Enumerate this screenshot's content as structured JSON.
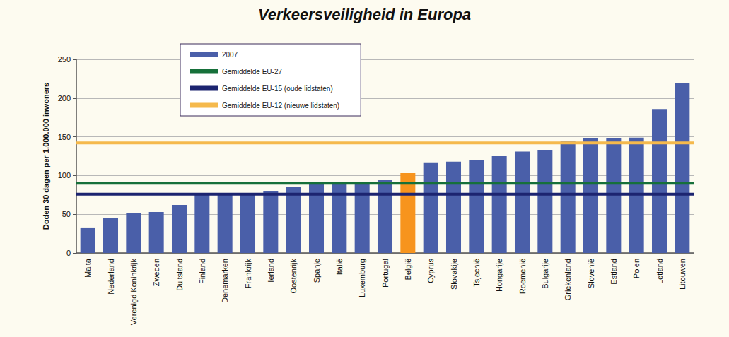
{
  "chart_data": {
    "type": "bar",
    "title": "Verkeersveiligheid in Europa",
    "y_label": "Doden 30 dagen per 1.000.000 inwoners",
    "categories": [
      "Malta",
      "Nederland",
      "Verenigd Koninkrijk",
      "Zweden",
      "Duitsland",
      "Finland",
      "Denemarken",
      "Frankrijk",
      "Ierland",
      "Oostenrijk",
      "Spanje",
      "Italië",
      "Luxemburg",
      "Portugal",
      "België",
      "Cyprus",
      "Slovakije",
      "Tsjechië",
      "Hongarije",
      "Roemenië",
      "Bulgarije",
      "Griekenland",
      "Slovenië",
      "Estland",
      "Polen",
      "Letland",
      "Litouwen"
    ],
    "series": [
      {
        "name": "2007",
        "type": "bar",
        "colors": [
          "#4a5fa9",
          "#4a5fa9",
          "#4a5fa9",
          "#4a5fa9",
          "#4a5fa9",
          "#4a5fa9",
          "#4a5fa9",
          "#4a5fa9",
          "#4a5fa9",
          "#4a5fa9",
          "#4a5fa9",
          "#4a5fa9",
          "#4a5fa9",
          "#4a5fa9",
          "#f7941d",
          "#4a5fa9",
          "#4a5fa9",
          "#4a5fa9",
          "#4a5fa9",
          "#4a5fa9",
          "#4a5fa9",
          "#4a5fa9",
          "#4a5fa9",
          "#4a5fa9",
          "#4a5fa9",
          "#4a5fa9",
          "#4a5fa9"
        ],
        "values": [
          32,
          45,
          52,
          53,
          62,
          77,
          77,
          77,
          80,
          85,
          90,
          90,
          92,
          94,
          103,
          116,
          118,
          120,
          125,
          131,
          133,
          144,
          148,
          148,
          149,
          186,
          220
        ]
      },
      {
        "name": "Gemiddelde EU-27",
        "type": "line",
        "color": "#16703a",
        "line_style": "solid",
        "values": [
          90,
          90,
          90,
          90,
          90,
          90,
          90,
          90,
          90,
          90,
          90,
          90,
          90,
          90,
          90,
          90,
          90,
          90,
          90,
          90,
          90,
          90,
          90,
          90,
          90,
          90,
          90
        ]
      },
      {
        "name": "Gemiddelde EU-15 (oude lidstaten)",
        "type": "line",
        "color": "#1c2470",
        "line_style": "solid",
        "values": [
          76,
          76,
          76,
          76,
          76,
          76,
          76,
          76,
          76,
          76,
          76,
          76,
          76,
          76,
          76,
          76,
          76,
          76,
          76,
          76,
          76,
          76,
          76,
          76,
          76,
          76,
          76
        ]
      },
      {
        "name": "Gemiddelde EU-12 (nieuwe lidstaten)",
        "type": "line",
        "color": "#f5b94c",
        "line_style": "solid",
        "values": [
          142,
          142,
          142,
          142,
          142,
          142,
          142,
          142,
          142,
          142,
          142,
          142,
          142,
          142,
          142,
          142,
          142,
          142,
          142,
          142,
          142,
          142,
          142,
          142,
          142,
          142,
          142
        ]
      }
    ],
    "ylim": [
      0,
      250
    ],
    "yticks": [
      0,
      50,
      100,
      150,
      200,
      250
    ],
    "grid": true,
    "legend": "upper left"
  }
}
